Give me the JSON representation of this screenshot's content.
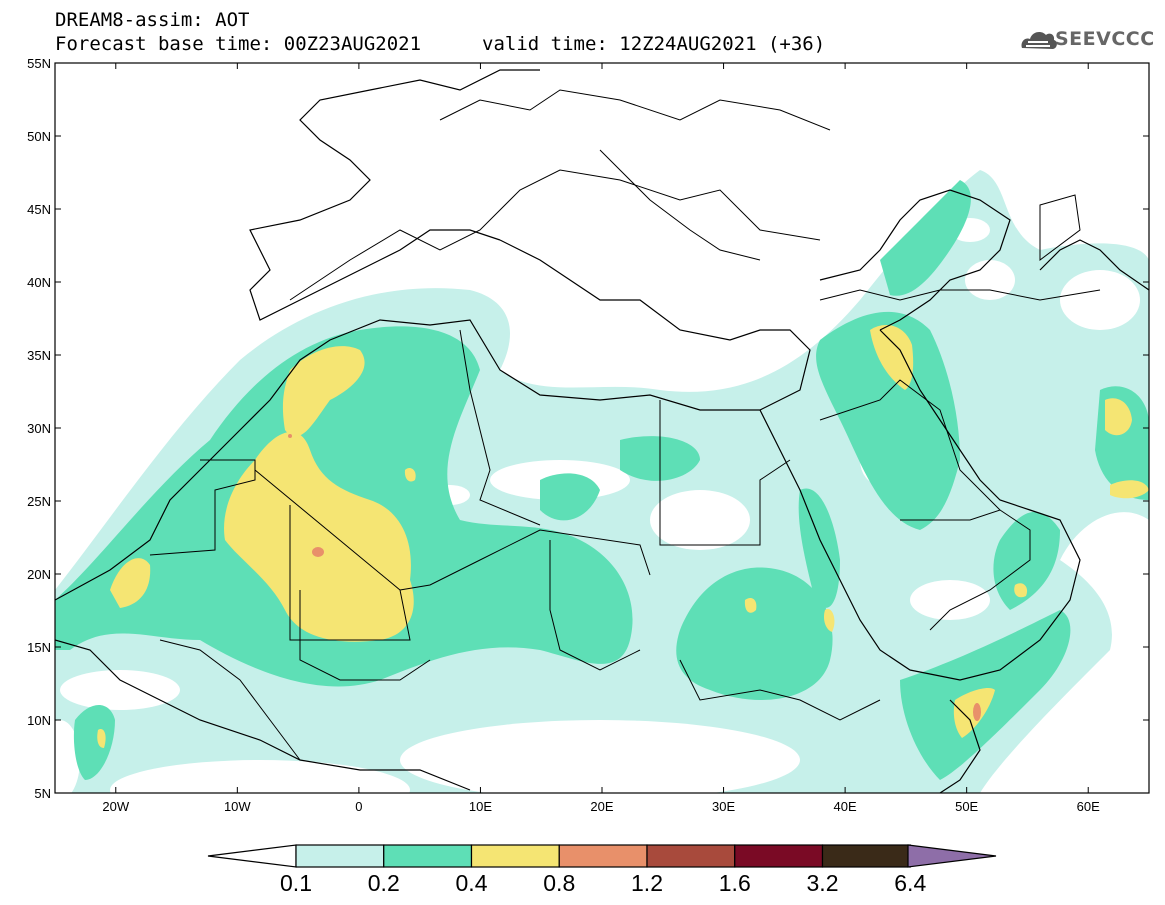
{
  "header": {
    "line1": "DREAM8-assim: AOT",
    "line2": "Forecast base time: 00Z23AUG2021",
    "line3": "valid time: 12Z24AUG2021 (+36)"
  },
  "logo": {
    "text": "SEEVCCC",
    "icon": "cloud-icon"
  },
  "map": {
    "lat_labels": [
      "55N",
      "50N",
      "45N",
      "40N",
      "35N",
      "30N",
      "25N",
      "20N",
      "15N",
      "10N",
      "5N"
    ],
    "lon_labels": [
      "20W",
      "10W",
      "0",
      "10E",
      "20E",
      "30E",
      "40E",
      "50E",
      "60E"
    ],
    "lat_range": [
      5,
      55
    ],
    "lon_range": [
      -25,
      65
    ]
  },
  "colorbar": {
    "labels": [
      "0.1",
      "0.2",
      "0.4",
      "0.8",
      "1.2",
      "1.6",
      "3.2",
      "6.4"
    ],
    "colors": [
      "#c6f0ea",
      "#5edfb6",
      "#f5e573",
      "#e8906a",
      "#a84a3c",
      "#7a0a25",
      "#3a2a18",
      "#8e6ea8"
    ]
  }
}
